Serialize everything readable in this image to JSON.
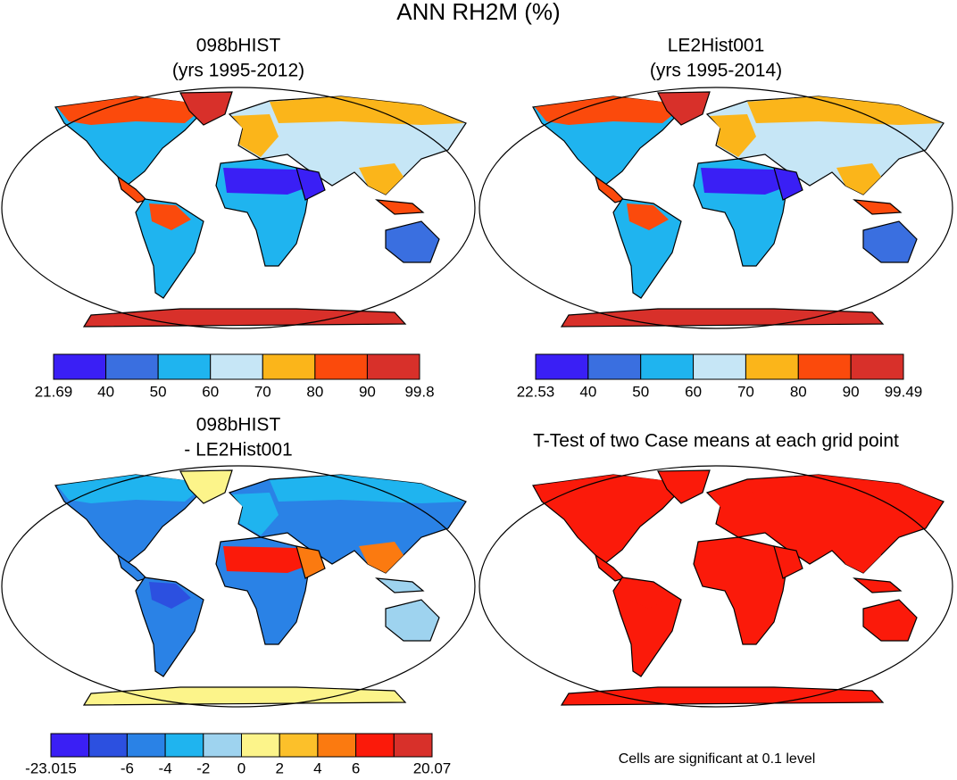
{
  "title": "ANN RH2M (%)",
  "panels": [
    {
      "title": [
        "098bHIST",
        "(yrs 1995-2012)"
      ],
      "colorbar": {
        "colors": [
          "#3a1ff5",
          "#3a6fe0",
          "#1fb4ef",
          "#c6e6f6",
          "#fbb51a",
          "#fb4a0c",
          "#d8302a"
        ],
        "labels": [
          "21.69",
          "40",
          "50",
          "60",
          "70",
          "80",
          "90",
          "99.8"
        ]
      }
    },
    {
      "title": [
        "LE2Hist001",
        "(yrs 1995-2014)"
      ],
      "colorbar": {
        "colors": [
          "#3a1ff5",
          "#3a6fe0",
          "#1fb4ef",
          "#c6e6f6",
          "#fbb51a",
          "#fb4a0c",
          "#d8302a"
        ],
        "labels": [
          "22.53",
          "40",
          "50",
          "60",
          "70",
          "80",
          "90",
          "99.49"
        ]
      }
    },
    {
      "title": [
        "098bHIST",
        "- LE2Hist001"
      ],
      "colorbar": {
        "colors": [
          "#3a1ff5",
          "#2c50e0",
          "#2a82e6",
          "#1fb4ef",
          "#9ed3ef",
          "#fcf48a",
          "#fcc02a",
          "#fb7a10",
          "#fb1a0a",
          "#d8302a"
        ],
        "labels": [
          "-23.015",
          null,
          "-6",
          "-4",
          "-2",
          "0",
          "2",
          "4",
          "6",
          null,
          "20.07"
        ]
      }
    },
    {
      "title": [
        "T-Test of two Case means at each grid point"
      ],
      "note": "Cells are significant at 0.1 level"
    }
  ]
}
